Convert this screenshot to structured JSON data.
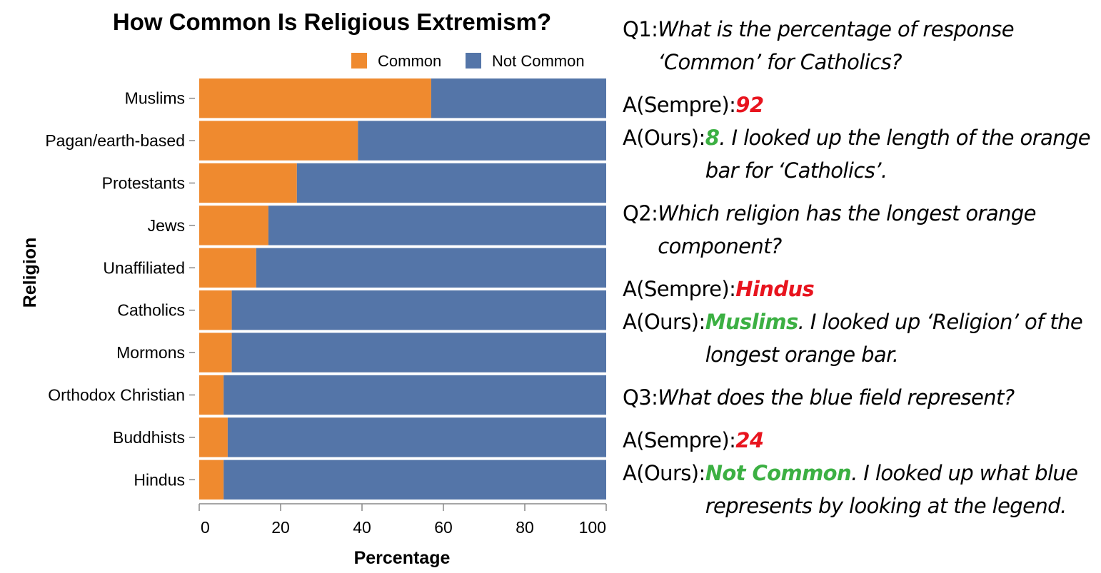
{
  "chart_data": {
    "type": "bar",
    "orientation": "horizontal",
    "stacked": true,
    "title": "How Common Is Religious Extremism?",
    "xlabel": "Percentage",
    "ylabel": "Religion",
    "xlim": [
      0,
      100
    ],
    "xticks": [
      0,
      20,
      40,
      60,
      80,
      100
    ],
    "legend_position": "top-right",
    "categories": [
      "Muslims",
      "Pagan/earth-based",
      "Protestants",
      "Jews",
      "Unaffiliated",
      "Catholics",
      "Mormons",
      "Orthodox Christian",
      "Buddhists",
      "Hindus"
    ],
    "series": [
      {
        "name": "Common",
        "color": "#ef8a2f",
        "values": [
          57,
          39,
          24,
          17,
          14,
          8,
          8,
          6,
          7,
          6
        ]
      },
      {
        "name": "Not Common",
        "color": "#5475a8",
        "values": [
          43,
          61,
          76,
          83,
          86,
          92,
          92,
          94,
          93,
          94
        ]
      }
    ]
  },
  "qa": [
    {
      "q_tag": "Q1: ",
      "question": "What is the percentage of response ‘Common’ for Catholics?",
      "sempre_tag": "A(Sempre): ",
      "sempre_answer": "92",
      "ours_tag": "A(Ours): ",
      "ours_answer": "8",
      "ours_explanation": ". I looked up the length of the orange bar for ‘Catholics’."
    },
    {
      "q_tag": "Q2: ",
      "question": "Which religion has the longest orange component?",
      "sempre_tag": "A(Sempre): ",
      "sempre_answer": "Hindus",
      "ours_tag": "A(Ours): ",
      "ours_answer": "Muslims",
      "ours_explanation": ". I looked up ‘Religion’ of the longest orange bar."
    },
    {
      "q_tag": "Q3: ",
      "question": "What does the blue field represent?",
      "sempre_tag": "A(Sempre): ",
      "sempre_answer": "24",
      "ours_tag": "A(Ours): ",
      "ours_answer": "Not Common",
      "ours_explanation": ". I looked up what blue represents by looking at the legend."
    }
  ]
}
